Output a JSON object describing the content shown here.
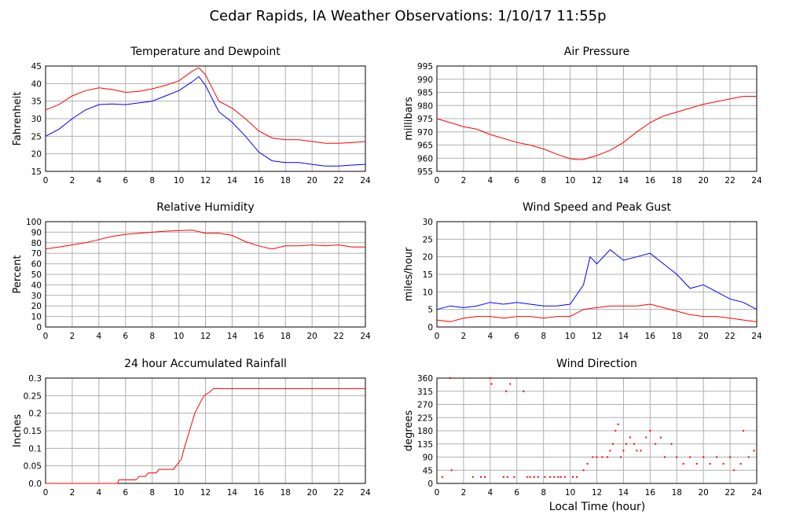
{
  "title": "Cedar Rapids, IA Weather Observations: 1/10/17 11:55p",
  "x_axis_label": "Local Time (hour)",
  "colors": {
    "red": "#ff0000",
    "blue": "#0000ff",
    "grid": "#b0b0b0"
  },
  "chart_data": [
    {
      "id": "temp",
      "type": "line",
      "title": "Temperature and Dewpoint",
      "ylabel": "Fahrenheit",
      "xlim": [
        0,
        24
      ],
      "ylim": [
        15,
        45
      ],
      "yticks": [
        15,
        20,
        25,
        30,
        35,
        40,
        45
      ],
      "xticks": [
        0,
        2,
        4,
        6,
        8,
        10,
        12,
        14,
        16,
        18,
        20,
        22,
        24
      ],
      "grid": true,
      "series": [
        {
          "color": "#ff0000",
          "x": [
            0,
            1,
            2,
            3,
            4,
            5,
            6,
            7,
            8,
            9,
            10,
            11,
            11.5,
            12,
            13,
            14,
            15,
            16,
            17,
            18,
            19,
            20,
            21,
            22,
            23,
            24
          ],
          "y": [
            32.5,
            34,
            36.5,
            38,
            38.8,
            38.3,
            37.5,
            37.8,
            38.5,
            39.5,
            40.8,
            43.5,
            44.5,
            42.5,
            35,
            33,
            30,
            26.5,
            24.5,
            24,
            24,
            23.5,
            23,
            23,
            23.2,
            23.5
          ]
        },
        {
          "color": "#0000ff",
          "x": [
            0,
            1,
            2,
            3,
            4,
            5,
            6,
            7,
            8,
            9,
            10,
            11,
            11.5,
            12,
            13,
            14,
            15,
            16,
            17,
            18,
            19,
            20,
            21,
            22,
            23,
            24
          ],
          "y": [
            25,
            27,
            30,
            32.5,
            34,
            34.2,
            34,
            34.5,
            35,
            36.5,
            38,
            40.5,
            42,
            39.5,
            32,
            29,
            25,
            20.5,
            18,
            17.5,
            17.5,
            17,
            16.5,
            16.5,
            16.8,
            17
          ]
        }
      ]
    },
    {
      "id": "pressure",
      "type": "line",
      "title": "Air Pressure",
      "ylabel": "millibars",
      "xlim": [
        0,
        24
      ],
      "ylim": [
        955,
        995
      ],
      "yticks": [
        955,
        960,
        965,
        970,
        975,
        980,
        985,
        990,
        995
      ],
      "xticks": [
        0,
        2,
        4,
        6,
        8,
        10,
        12,
        14,
        16,
        18,
        20,
        22,
        24
      ],
      "grid": true,
      "series": [
        {
          "color": "#ff0000",
          "x": [
            0,
            1,
            2,
            3,
            4,
            5,
            6,
            7,
            8,
            9,
            10,
            10.5,
            11,
            12,
            13,
            14,
            15,
            16,
            17,
            18,
            19,
            20,
            21,
            22,
            23,
            24
          ],
          "y": [
            975,
            973.5,
            972,
            971,
            969,
            967.5,
            966,
            965,
            963.5,
            961.5,
            959.8,
            959.5,
            959.5,
            961,
            963,
            966,
            970,
            973.5,
            976,
            977.5,
            979,
            980.5,
            981.5,
            982.5,
            983.5,
            983.5
          ]
        }
      ]
    },
    {
      "id": "rh",
      "type": "line",
      "title": "Relative Humidity",
      "ylabel": "Percent",
      "xlim": [
        0,
        24
      ],
      "ylim": [
        0,
        100
      ],
      "yticks": [
        0,
        10,
        20,
        30,
        40,
        50,
        60,
        70,
        80,
        90,
        100
      ],
      "xticks": [
        0,
        2,
        4,
        6,
        8,
        10,
        12,
        14,
        16,
        18,
        20,
        22,
        24
      ],
      "grid": true,
      "series": [
        {
          "color": "#ff0000",
          "x": [
            0,
            1,
            2,
            3,
            4,
            5,
            6,
            7,
            8,
            9,
            10,
            11,
            12,
            13,
            14,
            15,
            16,
            17,
            18,
            19,
            20,
            21,
            22,
            23,
            24
          ],
          "y": [
            74,
            76,
            78,
            80,
            83,
            86,
            88,
            89,
            90,
            91,
            91.5,
            92,
            89,
            89,
            87,
            81,
            77,
            74,
            77,
            77,
            78,
            77,
            78,
            76,
            76
          ]
        }
      ]
    },
    {
      "id": "wind",
      "type": "line",
      "title": "Wind Speed and Peak Gust",
      "ylabel": "miles/hour",
      "xlim": [
        0,
        24
      ],
      "ylim": [
        0,
        30
      ],
      "yticks": [
        0,
        5,
        10,
        15,
        20,
        25,
        30
      ],
      "xticks": [
        0,
        2,
        4,
        6,
        8,
        10,
        12,
        14,
        16,
        18,
        20,
        22,
        24
      ],
      "grid": true,
      "series": [
        {
          "color": "#0000ff",
          "x": [
            0,
            1,
            2,
            3,
            4,
            5,
            6,
            7,
            8,
            9,
            10,
            11,
            11.5,
            12,
            13,
            14,
            15,
            16,
            17,
            18,
            19,
            20,
            21,
            22,
            23,
            24
          ],
          "y": [
            5,
            6,
            5.5,
            6,
            7,
            6.5,
            7,
            6.5,
            6,
            6,
            6.5,
            12,
            20,
            18,
            22,
            19,
            20,
            21,
            18,
            15,
            11,
            12,
            10,
            8,
            7,
            5
          ]
        },
        {
          "color": "#ff0000",
          "x": [
            0,
            1,
            2,
            3,
            4,
            5,
            6,
            7,
            8,
            9,
            10,
            11,
            12,
            13,
            14,
            15,
            16,
            17,
            18,
            19,
            20,
            21,
            22,
            23,
            24
          ],
          "y": [
            2,
            1.5,
            2.5,
            3,
            3,
            2.5,
            3,
            3,
            2.5,
            3,
            3,
            5,
            5.5,
            6,
            6,
            6,
            6.5,
            5.5,
            4.5,
            3.5,
            3,
            3,
            2.5,
            2,
            1.5
          ]
        }
      ]
    },
    {
      "id": "rain",
      "type": "line",
      "title": "24 hour Accumulated Rainfall",
      "ylabel": "Inches",
      "xlim": [
        0,
        24
      ],
      "ylim": [
        0,
        0.3
      ],
      "yticks": [
        0,
        0.05,
        0.1,
        0.15,
        0.2,
        0.25,
        0.3
      ],
      "ytick_labels": [
        "0.0",
        "0.05",
        "0.1",
        "0.15",
        "0.2",
        "0.25",
        "0.3"
      ],
      "xticks": [
        0,
        2,
        4,
        6,
        8,
        10,
        12,
        14,
        16,
        18,
        20,
        22,
        24
      ],
      "grid": true,
      "series": [
        {
          "color": "#ff0000",
          "x": [
            0,
            5.4,
            5.5,
            6.8,
            7.0,
            7.5,
            7.7,
            8.3,
            8.5,
            9.6,
            9.8,
            10.2,
            10.4,
            10.8,
            11.2,
            11.6,
            11.9,
            12.3,
            12.6,
            13,
            24
          ],
          "y": [
            0,
            0,
            0.01,
            0.01,
            0.02,
            0.02,
            0.03,
            0.03,
            0.04,
            0.04,
            0.05,
            0.07,
            0.1,
            0.15,
            0.2,
            0.23,
            0.25,
            0.26,
            0.27,
            0.27,
            0.27
          ]
        }
      ]
    },
    {
      "id": "wdir",
      "type": "scatter",
      "title": "Wind Direction",
      "ylabel": "degrees",
      "xlim": [
        0,
        24
      ],
      "ylim": [
        0,
        360
      ],
      "yticks": [
        0,
        45,
        90,
        135,
        180,
        225,
        270,
        315,
        360
      ],
      "xticks": [
        0,
        2,
        4,
        6,
        8,
        10,
        12,
        14,
        16,
        18,
        20,
        22,
        24
      ],
      "grid": true,
      "series": [
        {
          "color": "#ff0000",
          "x": [
            0.4,
            1.0,
            1.1,
            2.7,
            3.3,
            3.6,
            4.0,
            4.1,
            5.0,
            5.2,
            5.3,
            5.5,
            5.8,
            6.5,
            6.8,
            7.0,
            7.3,
            7.6,
            8.1,
            8.5,
            8.8,
            9.1,
            9.3,
            9.6,
            10.2,
            10.5,
            11.0,
            11.3,
            11.7,
            12.0,
            12.4,
            12.8,
            13.0,
            13.2,
            13.4,
            13.6,
            13.8,
            14.0,
            14.2,
            14.5,
            14.8,
            15.0,
            15.3,
            15.7,
            16.0,
            16.4,
            16.8,
            17.1,
            17.6,
            18.0,
            18.5,
            19.0,
            19.5,
            20.0,
            20.5,
            21.0,
            21.5,
            22.0,
            22.3,
            22.8,
            23.0,
            23.4,
            23.8
          ],
          "y": [
            22,
            360,
            45,
            22,
            22,
            22,
            360,
            340,
            22,
            315,
            22,
            340,
            22,
            315,
            22,
            22,
            22,
            22,
            22,
            22,
            22,
            22,
            22,
            22,
            22,
            22,
            45,
            67,
            90,
            90,
            90,
            90,
            112,
            135,
            180,
            202,
            90,
            112,
            135,
            157,
            135,
            112,
            112,
            157,
            180,
            135,
            157,
            90,
            135,
            90,
            67,
            90,
            67,
            90,
            67,
            90,
            67,
            90,
            45,
            67,
            180,
            90,
            112
          ]
        }
      ]
    }
  ]
}
